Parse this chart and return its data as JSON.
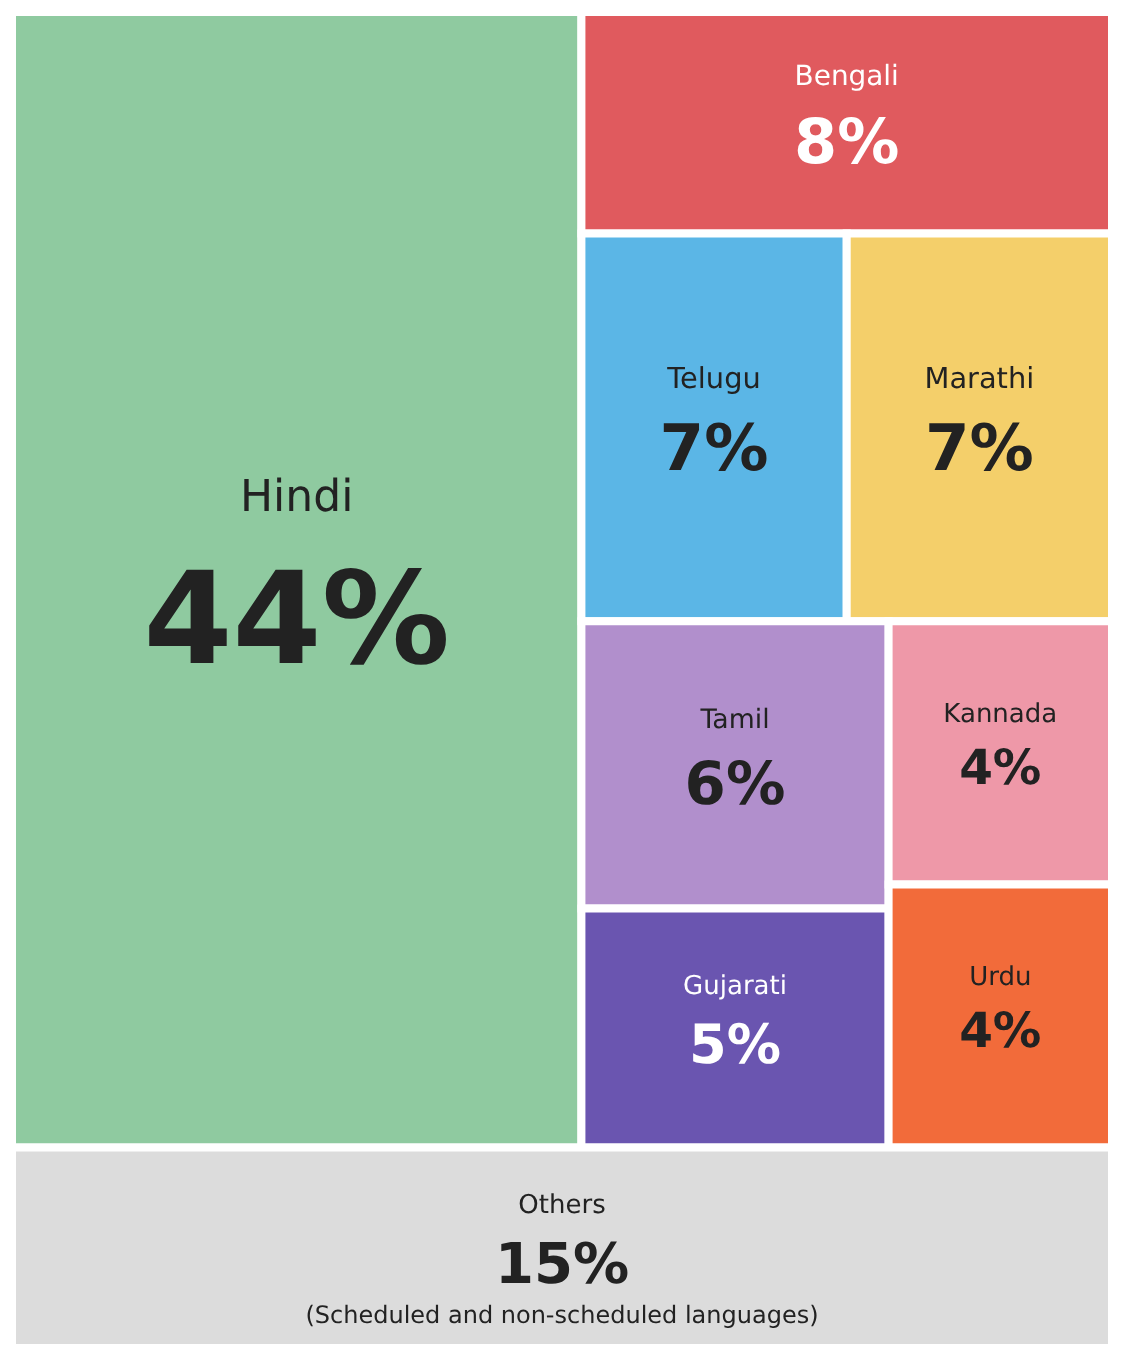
{
  "chart_data": {
    "type": "other",
    "categories": [
      "Hindi",
      "Bengali",
      "Telugu",
      "Marathi",
      "Tamil",
      "Gujarati",
      "Kannada",
      "Urdu",
      "Others"
    ],
    "values": [
      44,
      8,
      7,
      7,
      6,
      5,
      4,
      4,
      15
    ],
    "value_labels": [
      "44%",
      "8%",
      "7%",
      "7%",
      "6%",
      "5%",
      "4%",
      "4%",
      "15%"
    ],
    "colors": [
      "#8fcaa0",
      "#e05a5e",
      "#5bb6e6",
      "#f4cf6a",
      "#b18fcc",
      "#6a55b0",
      "#ee98a8",
      "#f26b3a",
      "#dcdcdc"
    ],
    "annotations": [
      {
        "text": "(Scheduled and non-scheduled languages)",
        "x": "Others"
      }
    ]
  }
}
